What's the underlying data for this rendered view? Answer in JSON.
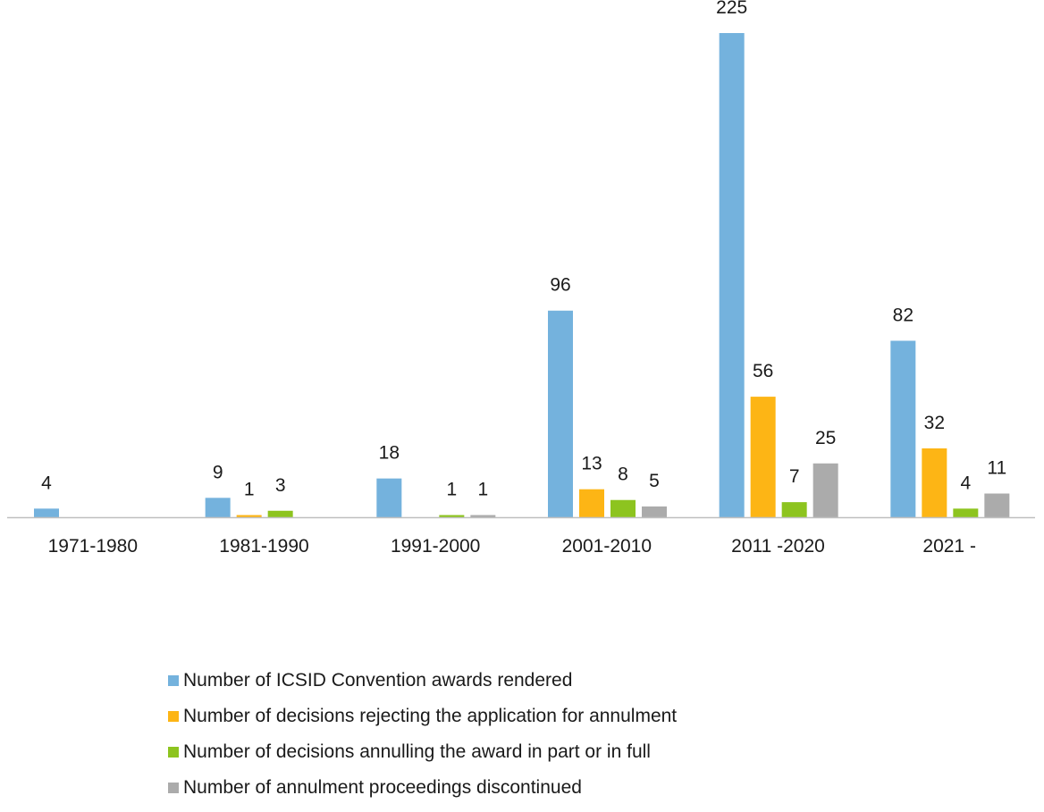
{
  "chart_data": {
    "type": "bar",
    "categories": [
      "1971-1980",
      "1981-1990",
      "1991-2000",
      "2001-2010",
      "2011 -2020",
      "2021 -"
    ],
    "series": [
      {
        "name": "Number of ICSID Convention awards rendered",
        "color": "#74b2dd",
        "values": [
          4,
          9,
          18,
          96,
          225,
          82
        ],
        "labels": [
          "4",
          "9",
          "18",
          "96",
          "225",
          "82"
        ]
      },
      {
        "name": "Number of decisions rejecting the application for annulment",
        "color": "#fdb515",
        "values": [
          0,
          1,
          0,
          13,
          56,
          32
        ],
        "labels": [
          "",
          "1",
          "",
          "13",
          "56",
          "32"
        ]
      },
      {
        "name": "Number of decisions annulling the award in part or in full",
        "color": "#8dc41f",
        "values": [
          0,
          3,
          1,
          8,
          7,
          4
        ],
        "labels": [
          "",
          "3",
          "1",
          "8",
          "7",
          "4"
        ]
      },
      {
        "name": "Number of annulment proceedings discontinued",
        "color": "#ababab",
        "values": [
          0,
          0,
          1,
          5,
          25,
          11
        ],
        "labels": [
          "",
          "",
          "1",
          "5",
          "25",
          "11"
        ]
      }
    ],
    "ylim": [
      0,
      225
    ],
    "grid": false,
    "legend_position": "bottom",
    "axis_color": "#bfbfbf"
  }
}
